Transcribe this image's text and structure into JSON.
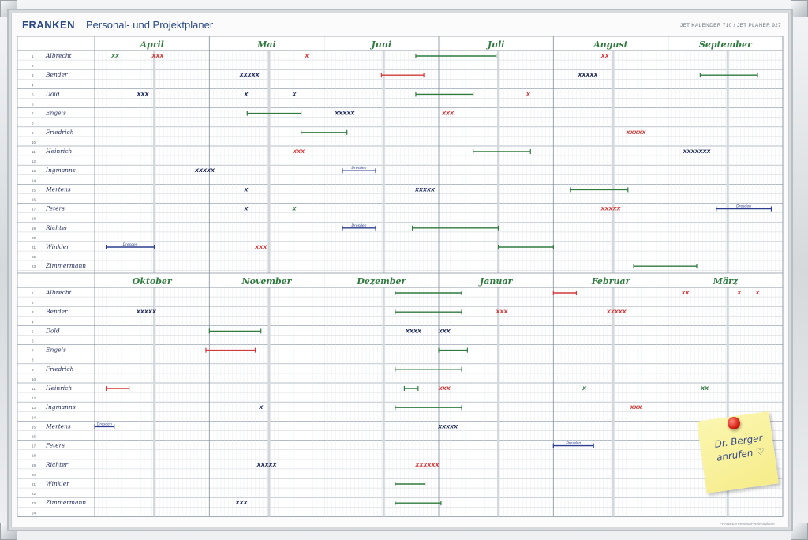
{
  "header": {
    "brand": "FRANKEN",
    "title": "Personal- und Projektplaner",
    "model": "JET KALENDER 710 / JET PLANER 927",
    "footer": "FRANKEN Personal-Weitvorplaner"
  },
  "top_months": [
    "April",
    "Mai",
    "Juni",
    "Juli",
    "August",
    "September"
  ],
  "bottom_months": [
    "Oktober",
    "November",
    "Dezember",
    "Januar",
    "Februar",
    "März"
  ],
  "names": [
    "Albrecht",
    "Bender",
    "Dold",
    "Engels",
    "Friedrich",
    "Heinrich",
    "Ingmanns",
    "Mertens",
    "Peters",
    "Richter",
    "Winkler",
    "Zimmermann"
  ],
  "row_numbers": [
    "1",
    "2",
    "3",
    "4",
    "5",
    "6",
    "7",
    "8",
    "9",
    "10",
    "11",
    "12",
    "13",
    "14",
    "15",
    "16",
    "17",
    "18",
    "19",
    "20",
    "21",
    "22",
    "23",
    "24"
  ],
  "colors": {
    "line_green": "#2f7a3e",
    "line_red": "#d33a3a",
    "line_blue": "#2c3e8f",
    "ink": "#1f2a5a",
    "grid": "#bfc7cf",
    "brand": "#2b4a86"
  },
  "label_dresden": "Dresden",
  "note": {
    "line1": "Dr. Berger",
    "line2": "anrufen ♡"
  },
  "entries": {
    "top": [
      {
        "row": 1,
        "col": 0,
        "pos": 0.18,
        "text": "XX",
        "color": "line_green"
      },
      {
        "row": 1,
        "col": 0,
        "pos": 0.55,
        "text": "XXX",
        "color": "line_red"
      },
      {
        "row": 1,
        "col": 1,
        "pos": 0.85,
        "text": "X",
        "color": "line_red"
      },
      {
        "row": 1,
        "col": 4,
        "pos": 0.45,
        "text": "XX",
        "color": "line_red"
      },
      {
        "row": 3,
        "col": 1,
        "pos": 0.35,
        "text": "XXXXX",
        "color": "ink"
      },
      {
        "row": 3,
        "col": 4,
        "pos": 0.3,
        "text": "XXXXX",
        "color": "ink"
      },
      {
        "row": 5,
        "col": 0,
        "pos": 0.42,
        "text": "XXX",
        "color": "ink"
      },
      {
        "row": 5,
        "col": 1,
        "pos": 0.32,
        "text": "X",
        "color": "ink"
      },
      {
        "row": 5,
        "col": 1,
        "pos": 0.74,
        "text": "X",
        "color": "ink"
      },
      {
        "row": 5,
        "col": 3,
        "pos": 0.78,
        "text": "X",
        "color": "line_red"
      },
      {
        "row": 7,
        "col": 2,
        "pos": 0.18,
        "text": "XXXXX",
        "color": "ink"
      },
      {
        "row": 7,
        "col": 3,
        "pos": 0.08,
        "text": "XXX",
        "color": "line_red"
      },
      {
        "row": 9,
        "col": 4,
        "pos": 0.72,
        "text": "XXXXX",
        "color": "line_red"
      },
      {
        "row": 11,
        "col": 1,
        "pos": 0.78,
        "text": "XXX",
        "color": "line_red"
      },
      {
        "row": 11,
        "col": 5,
        "pos": 0.25,
        "text": "XXXXXXX",
        "color": "ink"
      },
      {
        "row": 13,
        "col": 0,
        "pos": 0.96,
        "text": "XXXXX",
        "color": "ink"
      },
      {
        "row": 15,
        "col": 1,
        "pos": 0.32,
        "text": "X",
        "color": "ink"
      },
      {
        "row": 15,
        "col": 2,
        "pos": 0.88,
        "text": "XXXXX",
        "color": "ink"
      },
      {
        "row": 17,
        "col": 1,
        "pos": 0.32,
        "text": "X",
        "color": "ink"
      },
      {
        "row": 17,
        "col": 1,
        "pos": 0.74,
        "text": "X",
        "color": "line_green"
      },
      {
        "row": 17,
        "col": 4,
        "pos": 0.5,
        "text": "XXXXX",
        "color": "line_red"
      },
      {
        "row": 21,
        "col": 1,
        "pos": 0.45,
        "text": "XXX",
        "color": "line_red"
      }
    ],
    "bottom": [
      {
        "row": 3,
        "col": 0,
        "pos": 0.45,
        "text": "XXXXX",
        "color": "ink"
      },
      {
        "row": 3,
        "col": 3,
        "pos": 0.55,
        "text": "XXX",
        "color": "line_red"
      },
      {
        "row": 3,
        "col": 4,
        "pos": 0.55,
        "text": "XXXXX",
        "color": "line_red"
      },
      {
        "row": 5,
        "col": 2,
        "pos": 0.78,
        "text": "XXXX",
        "color": "ink"
      },
      {
        "row": 5,
        "col": 3,
        "pos": 0.05,
        "text": "XXX",
        "color": "ink"
      },
      {
        "row": 11,
        "col": 3,
        "pos": 0.05,
        "text": "XXX",
        "color": "line_red"
      },
      {
        "row": 11,
        "col": 4,
        "pos": 0.27,
        "text": "X",
        "color": "line_green"
      },
      {
        "row": 11,
        "col": 5,
        "pos": 0.32,
        "text": "XX",
        "color": "line_green"
      },
      {
        "row": 1,
        "col": 5,
        "pos": 0.15,
        "text": "XX",
        "color": "line_red"
      },
      {
        "row": 1,
        "col": 5,
        "pos": 0.62,
        "text": "X",
        "color": "line_red"
      },
      {
        "row": 1,
        "col": 5,
        "pos": 0.78,
        "text": "X",
        "color": "line_red"
      },
      {
        "row": 13,
        "col": 1,
        "pos": 0.45,
        "text": "X",
        "color": "ink"
      },
      {
        "row": 13,
        "col": 4,
        "pos": 0.72,
        "text": "XXX",
        "color": "line_red"
      },
      {
        "row": 15,
        "col": 3,
        "pos": 0.08,
        "text": "XXXXX",
        "color": "ink"
      },
      {
        "row": 19,
        "col": 1,
        "pos": 0.5,
        "text": "XXXXX",
        "color": "ink"
      },
      {
        "row": 19,
        "col": 2,
        "pos": 0.9,
        "text": "XXXXXX",
        "color": "line_red"
      },
      {
        "row": 23,
        "col": 1,
        "pos": 0.28,
        "text": "XXX",
        "color": "ink"
      }
    ]
  }
}
